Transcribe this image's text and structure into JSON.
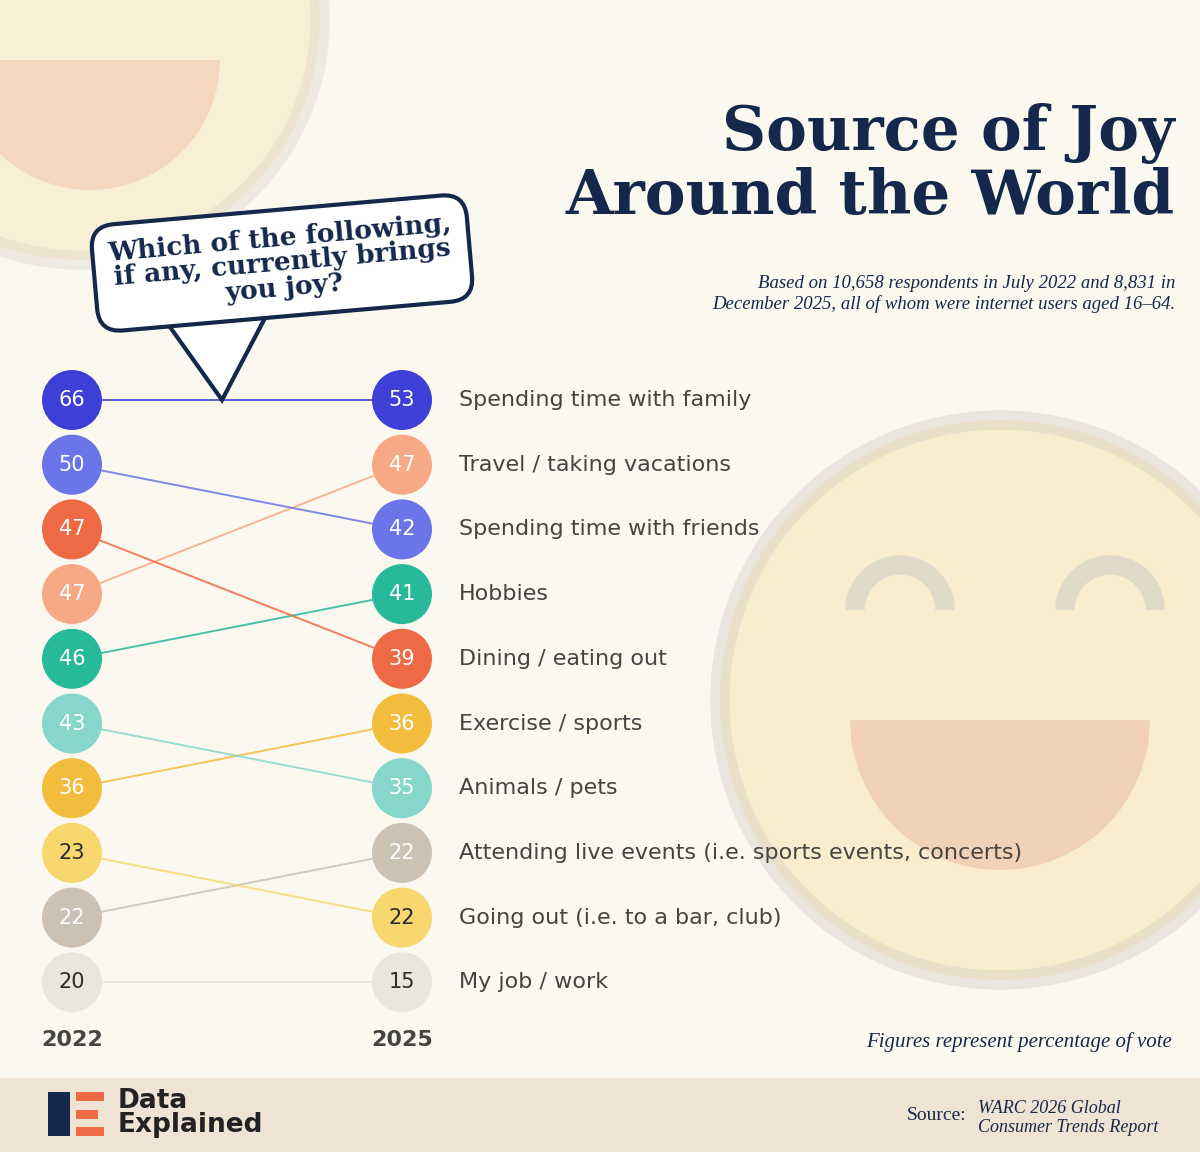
{
  "chart_data": {
    "type": "slope",
    "title": "Source of Joy\nAround the World",
    "subtitle": "Based on 10,658 respondents in July 2022 and 8,831 in\nDecember 2025, all of whom were internet users aged 16–64.",
    "question": "Which of the following,\nif any, currently brings\nyou joy?",
    "note": "Figures represent percentage of vote",
    "source_label": "Source:",
    "source": "WARC 2026 Global\nConsumer Trends Report",
    "brand": "Data\nExplained",
    "categories": [
      "Spending time with family",
      "Travel / taking vacations",
      "Spending time with friends",
      "Hobbies",
      "Dining / eating out",
      "Exercise / sports",
      "Animals / pets",
      "Attending live events (i.e. sports events, concerts)",
      "Going out (i.e. to a bar, club)",
      "My job / work"
    ],
    "series": [
      {
        "name": "2022",
        "values": [
          66,
          47,
          50,
          46,
          47,
          36,
          43,
          22,
          23,
          20
        ]
      },
      {
        "name": "2025",
        "values": [
          53,
          47,
          42,
          41,
          39,
          36,
          35,
          22,
          22,
          15
        ]
      }
    ],
    "colors": [
      "#3d3fd6",
      "#f6a984",
      "#6c74ea",
      "#27b99a",
      "#ee6a45",
      "#f2bc3c",
      "#86d6cc",
      "#cbc2b4",
      "#f7d76e",
      "#ebe6dd"
    ],
    "data_labels": true
  }
}
